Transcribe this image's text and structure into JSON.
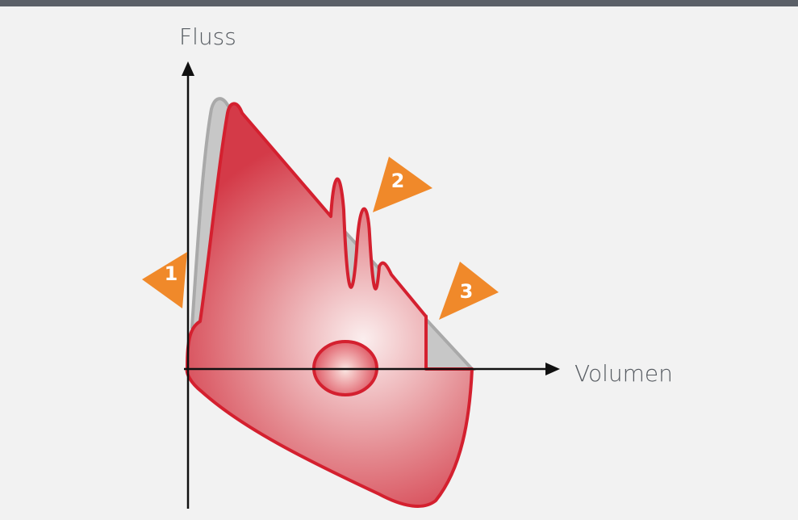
{
  "y_axis_label": "Fluss",
  "x_axis_label": "Volumen",
  "markers": [
    "1",
    "2",
    "3"
  ]
}
